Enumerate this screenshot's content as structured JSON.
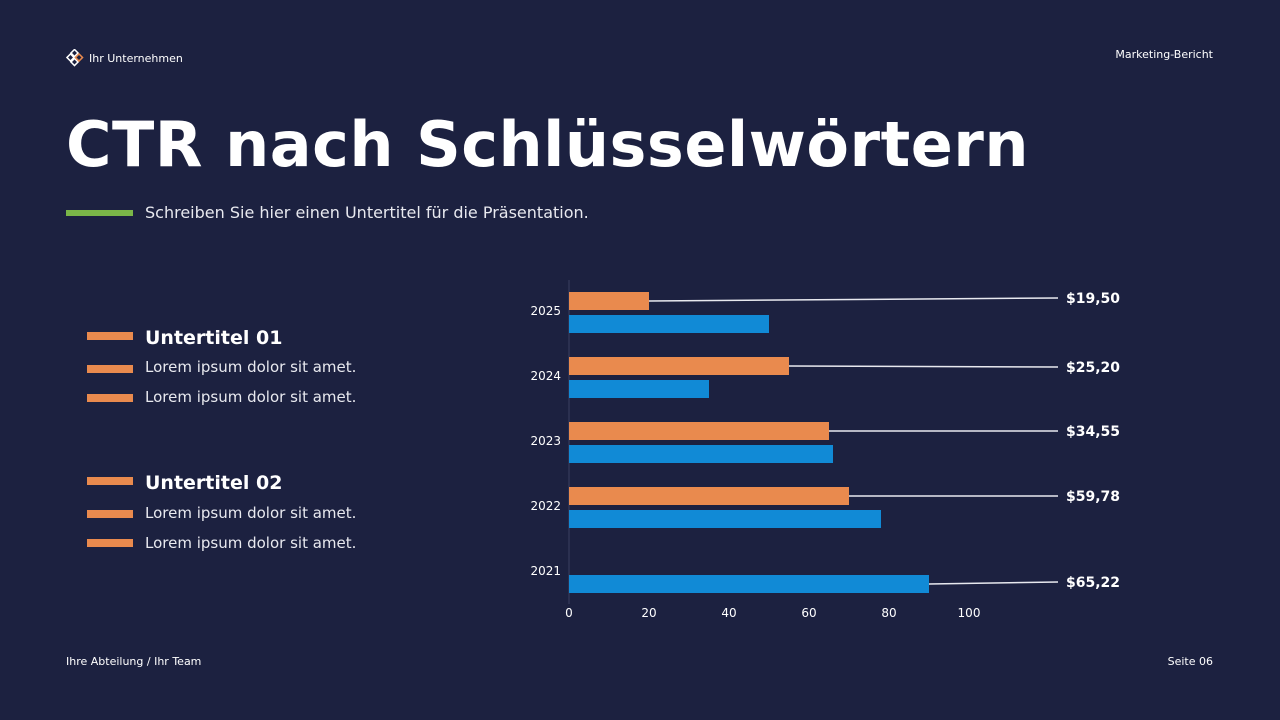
{
  "header": {
    "company": "Ihr Unternehmen",
    "report": "Marketing-Bericht",
    "logo_icon": "diamond-grid-icon"
  },
  "title": "CTR nach Schlüsselwörtern",
  "subtitle": "Schreiben Sie hier einen Untertitel für die Präsentation.",
  "sections": [
    {
      "heading": "Untertitel 01",
      "items": [
        "Lorem ipsum dolor sit amet.",
        "Lorem ipsum dolor sit amet."
      ]
    },
    {
      "heading": "Untertitel 02",
      "items": [
        "Lorem ipsum dolor sit amet.",
        "Lorem ipsum dolor sit amet."
      ]
    }
  ],
  "footer": {
    "left": "Ihre Abteilung / Ihr Team",
    "right": "Seite 06"
  },
  "colors": {
    "background": "#1c2140",
    "orange": "#e98a4e",
    "blue": "#118ad6",
    "accent": "#7ab648"
  },
  "chart_data": {
    "type": "bar",
    "orientation": "horizontal",
    "categories": [
      "2025",
      "2024",
      "2023",
      "2022",
      "2021"
    ],
    "series": [
      {
        "values": [
          20,
          55,
          65,
          70,
          null
        ],
        "color": "#e98a4e"
      },
      {
        "values": [
          50,
          35,
          66,
          78,
          90
        ],
        "color": "#118ad6"
      }
    ],
    "value_labels": [
      "$19,50",
      "$25,20",
      "$34,55",
      "$59,78",
      "$65,22"
    ],
    "xlim": [
      0,
      100
    ],
    "xticks": [
      0,
      20,
      40,
      60,
      80,
      100
    ],
    "grid": false
  }
}
